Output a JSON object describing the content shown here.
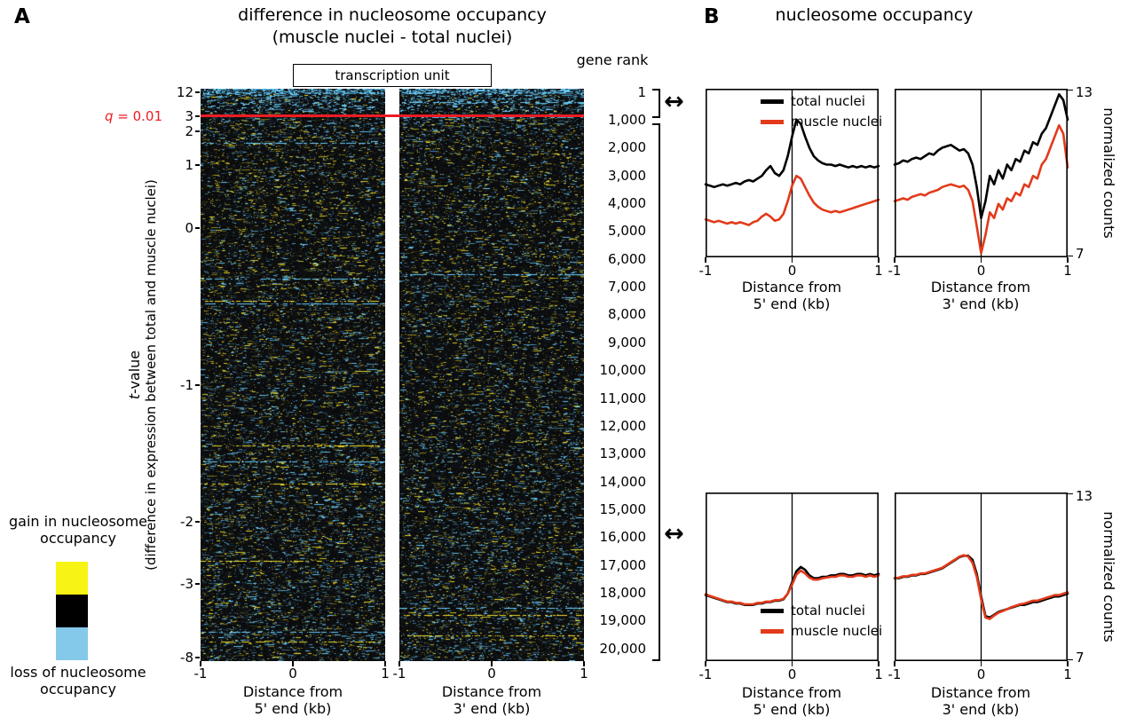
{
  "figure": {
    "link_arrow": "↔",
    "axis": {
      "distance_from": "Distance from",
      "end5": "5' end (kb)",
      "end3": "3' end (kb)"
    },
    "panel_a": {
      "label": "A",
      "title_line1": "difference in nucleosome occupancy",
      "title_line2": "(muscle nuclei - total nuclei)",
      "transcription_unit_label": "transcription unit",
      "gene_rank_label": "gene rank",
      "q_symbol": "q",
      "q_rest": " = 0.01",
      "q_line_color": "#ed1c24",
      "t_symbol": "t",
      "t_rest": "-value",
      "t_axis_sub": "(difference in expression between total and muscle nuclei)",
      "t_ticks": [
        "12",
        "3",
        "2",
        "1",
        "0",
        "-1",
        "-2",
        "-3",
        "-8"
      ],
      "gene_rank_ticks": [
        "1",
        "1,000",
        "2,000",
        "3,000",
        "4,000",
        "5,000",
        "6,000",
        "7,000",
        "8,000",
        "9,000",
        "10,000",
        "11,000",
        "12,000",
        "13,000",
        "14,000",
        "15,000",
        "16,000",
        "17,000",
        "18,000",
        "19,000",
        "20,000"
      ],
      "x_ticks": [
        "-1",
        "0",
        "1"
      ],
      "legend": {
        "gain_line1": "gain in nucleosome",
        "gain_line2": "occupancy",
        "loss_line1": "loss of nucleosome",
        "loss_line2": "occupancy",
        "gain_color": "#f7f414",
        "mid_color": "#000000",
        "loss_color": "#85c9ea"
      }
    },
    "panel_b": {
      "label": "B",
      "title": "nucleosome occupancy",
      "y_axis_label": "normalized counts",
      "y_tick_top": "13",
      "y_tick_bottom": "7",
      "x_ticks": [
        "-1",
        "0",
        "1"
      ],
      "legend": {
        "total_label": "total nuclei",
        "muscle_label": "muscle nuclei",
        "total_color": "#000000",
        "muscle_color": "#e23a1a"
      }
    }
  },
  "chart_data": [
    {
      "type": "heatmap",
      "title": "difference in nucleosome occupancy (muscle nuclei - total nuclei)",
      "panels": [
        "Distance from 5' end (kb)",
        "Distance from 3' end (kb)"
      ],
      "x_range_kb": [
        -1,
        1
      ],
      "row_order": "genes ranked 1 to 20,000 by t-value (difference in expression between total and muscle nuclei)",
      "t_value_ticks": [
        12,
        3,
        2,
        1,
        0,
        -1,
        -2,
        -3,
        -8
      ],
      "gene_rank_ticks": [
        1,
        1000,
        2000,
        3000,
        4000,
        5000,
        6000,
        7000,
        8000,
        9000,
        10000,
        11000,
        12000,
        13000,
        14000,
        15000,
        16000,
        17000,
        18000,
        19000,
        20000
      ],
      "color_scale": {
        "positive": "yellow = gain in nucleosome occupancy",
        "zero": "black",
        "negative": "light blue = loss of nucleosome occupancy"
      },
      "significance_line": {
        "label": "q = 0.01",
        "t_value": 3,
        "color": "#ed1c24"
      }
    },
    {
      "type": "line",
      "title": "nucleosome occupancy, gene rank 1-1,000, 5' end",
      "x_range": [
        -1,
        1
      ],
      "xlabel": "Distance from 5' end (kb)",
      "ylabel": "normalized counts",
      "ylim": [
        7,
        13
      ],
      "series": [
        {
          "name": "total nuclei",
          "color": "#000000",
          "values": [
            9.6,
            9.55,
            9.5,
            9.55,
            9.6,
            9.55,
            9.6,
            9.65,
            9.6,
            9.7,
            9.75,
            9.7,
            9.8,
            9.9,
            10.1,
            10.25,
            10.0,
            9.9,
            10.1,
            10.6,
            11.3,
            11.9,
            11.75,
            11.3,
            10.9,
            10.6,
            10.45,
            10.35,
            10.3,
            10.3,
            10.25,
            10.3,
            10.25,
            10.2,
            10.25,
            10.2,
            10.25,
            10.2,
            10.25,
            10.2,
            10.25
          ]
        },
        {
          "name": "muscle nuclei",
          "color": "#e23a1a",
          "values": [
            8.35,
            8.3,
            8.25,
            8.3,
            8.25,
            8.2,
            8.25,
            8.2,
            8.25,
            8.2,
            8.15,
            8.25,
            8.3,
            8.45,
            8.55,
            8.45,
            8.3,
            8.35,
            8.55,
            9.0,
            9.55,
            9.9,
            9.8,
            9.5,
            9.2,
            8.95,
            8.8,
            8.7,
            8.65,
            8.6,
            8.65,
            8.6,
            8.65,
            8.7,
            8.75,
            8.8,
            8.85,
            8.9,
            8.95,
            9.0,
            9.05
          ]
        }
      ]
    },
    {
      "type": "line",
      "title": "nucleosome occupancy, gene rank 1-1,000, 3' end",
      "x_range": [
        -1,
        1
      ],
      "xlabel": "Distance from 3' end (kb)",
      "ylabel": "normalized counts",
      "ylim": [
        7,
        13
      ],
      "series": [
        {
          "name": "total nuclei",
          "color": "#000000",
          "values": [
            10.3,
            10.35,
            10.45,
            10.4,
            10.5,
            10.55,
            10.5,
            10.6,
            10.7,
            10.65,
            10.8,
            10.9,
            10.95,
            11.0,
            10.9,
            10.8,
            10.85,
            10.7,
            10.3,
            9.5,
            8.4,
            9.0,
            9.9,
            9.6,
            10.1,
            9.8,
            10.3,
            10.1,
            10.5,
            10.4,
            10.8,
            10.7,
            11.1,
            11.0,
            11.4,
            11.6,
            12.0,
            12.4,
            12.8,
            12.6,
            11.9
          ]
        },
        {
          "name": "muscle nuclei",
          "color": "#e23a1a",
          "values": [
            9.0,
            9.05,
            9.1,
            9.05,
            9.15,
            9.2,
            9.25,
            9.2,
            9.3,
            9.35,
            9.4,
            9.5,
            9.55,
            9.6,
            9.55,
            9.5,
            9.55,
            9.4,
            9.0,
            8.1,
            7.15,
            7.8,
            8.6,
            8.4,
            8.9,
            8.7,
            9.1,
            9.0,
            9.3,
            9.2,
            9.6,
            9.5,
            9.9,
            9.8,
            10.3,
            10.5,
            10.9,
            11.3,
            11.7,
            11.4,
            10.2
          ]
        }
      ]
    },
    {
      "type": "line",
      "title": "nucleosome occupancy, gene rank 1,000-20,000, 5' end",
      "x_range": [
        -1,
        1
      ],
      "xlabel": "Distance from 5' end (kb)",
      "ylabel": "normalized counts",
      "ylim": [
        7,
        13
      ],
      "series": [
        {
          "name": "total nuclei",
          "color": "#000000",
          "values": [
            9.35,
            9.3,
            9.25,
            9.2,
            9.15,
            9.1,
            9.1,
            9.05,
            9.05,
            9.0,
            9.0,
            9.0,
            9.05,
            9.05,
            9.1,
            9.1,
            9.15,
            9.15,
            9.2,
            9.4,
            9.8,
            10.2,
            10.35,
            10.25,
            10.05,
            9.95,
            9.95,
            10.0,
            10.0,
            10.05,
            10.05,
            10.1,
            10.1,
            10.05,
            10.05,
            10.1,
            10.1,
            10.05,
            10.1,
            10.05,
            10.1
          ]
        },
        {
          "name": "muscle nuclei",
          "color": "#e23a1a",
          "values": [
            9.38,
            9.32,
            9.27,
            9.22,
            9.17,
            9.12,
            9.12,
            9.07,
            9.07,
            9.02,
            9.02,
            9.02,
            9.07,
            9.07,
            9.12,
            9.12,
            9.17,
            9.17,
            9.22,
            9.4,
            9.72,
            10.08,
            10.22,
            10.12,
            9.97,
            9.9,
            9.9,
            9.95,
            9.97,
            10.0,
            10.0,
            10.05,
            10.05,
            10.0,
            10.0,
            10.05,
            10.05,
            10.0,
            10.05,
            10.0,
            10.05
          ]
        }
      ]
    },
    {
      "type": "line",
      "title": "nucleosome occupancy, gene rank 1,000-20,000, 3' end",
      "x_range": [
        -1,
        1
      ],
      "xlabel": "Distance from 3' end (kb)",
      "ylabel": "normalized counts",
      "ylim": [
        7,
        13
      ],
      "series": [
        {
          "name": "total nuclei",
          "color": "#000000",
          "values": [
            9.95,
            9.95,
            10.0,
            10.0,
            10.05,
            10.05,
            10.1,
            10.1,
            10.15,
            10.2,
            10.25,
            10.3,
            10.4,
            10.5,
            10.6,
            10.7,
            10.75,
            10.75,
            10.6,
            10.1,
            9.3,
            8.6,
            8.55,
            8.65,
            8.75,
            8.8,
            8.85,
            8.9,
            8.95,
            9.0,
            9.0,
            9.05,
            9.1,
            9.1,
            9.15,
            9.2,
            9.25,
            9.3,
            9.3,
            9.35,
            9.4
          ]
        },
        {
          "name": "muscle nuclei",
          "color": "#e23a1a",
          "values": [
            9.95,
            9.97,
            10.02,
            10.02,
            10.07,
            10.07,
            10.12,
            10.12,
            10.17,
            10.22,
            10.27,
            10.32,
            10.42,
            10.52,
            10.62,
            10.72,
            10.77,
            10.72,
            10.5,
            10.0,
            9.2,
            8.55,
            8.5,
            8.62,
            8.72,
            8.78,
            8.85,
            8.92,
            8.97,
            9.02,
            9.05,
            9.1,
            9.15,
            9.15,
            9.2,
            9.25,
            9.3,
            9.35,
            9.35,
            9.4,
            9.45
          ]
        }
      ]
    }
  ]
}
